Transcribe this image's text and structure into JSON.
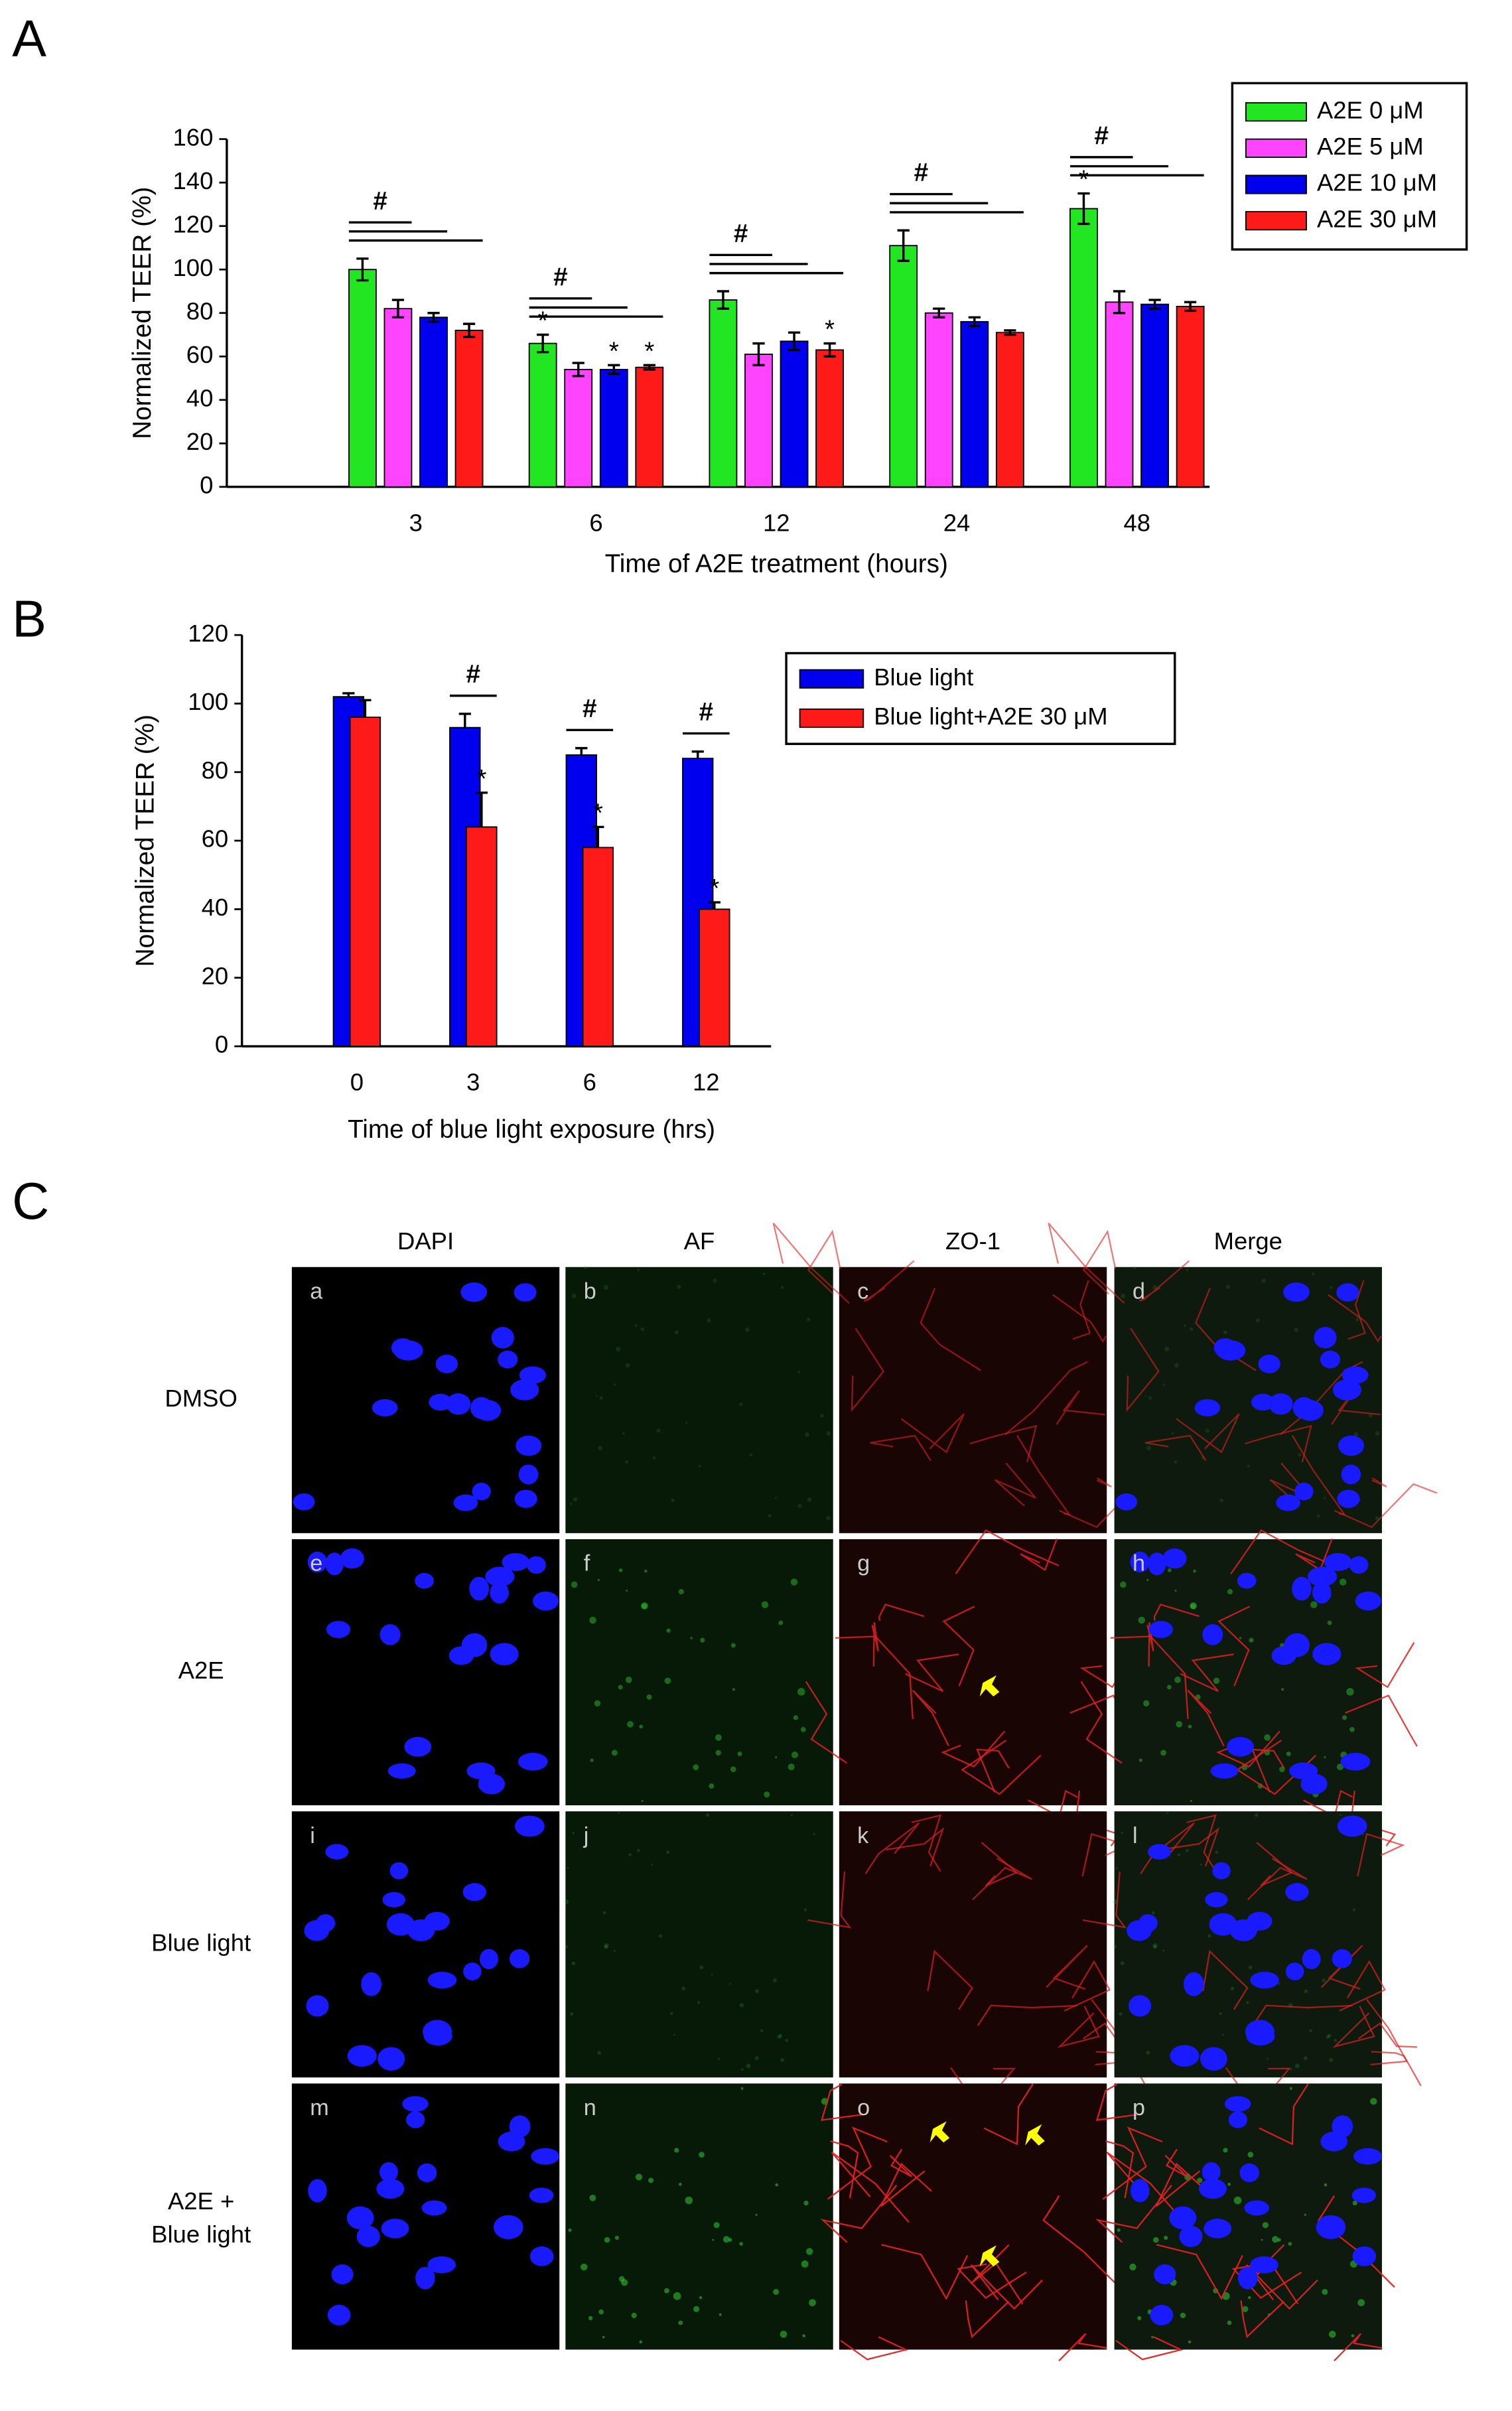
{
  "chart_data": [
    {
      "type": "bar",
      "panel_label": "A",
      "x_label": "Time of A2E treatment (hours)",
      "y_label": "Normalized TEER (%)",
      "categories": [
        "3",
        "6",
        "12",
        "24",
        "48"
      ],
      "series": [
        {
          "name": "A2E 0 μM",
          "color": "#22e622",
          "values": [
            100,
            66,
            86,
            111,
            128
          ],
          "errors": [
            5,
            4,
            4,
            7,
            7
          ],
          "annotations": [
            null,
            "*",
            null,
            null,
            "*"
          ]
        },
        {
          "name": "A2E 5 μM",
          "color": "#ff44ff",
          "values": [
            82,
            54,
            61,
            80,
            85
          ],
          "errors": [
            4,
            3,
            5,
            2,
            5
          ],
          "annotations": [
            null,
            null,
            null,
            null,
            null
          ]
        },
        {
          "name": "A2E 10 μM",
          "color": "#0000ee",
          "values": [
            78,
            54,
            67,
            76,
            84
          ],
          "errors": [
            2,
            2,
            4,
            2,
            2
          ],
          "annotations": [
            null,
            "*",
            null,
            null,
            null
          ]
        },
        {
          "name": "A2E 30 μM",
          "color": "#ff1a1a",
          "values": [
            72,
            55,
            63,
            71,
            83
          ],
          "errors": [
            3,
            1,
            3,
            1,
            2
          ],
          "annotations": [
            null,
            "*",
            "*",
            null,
            null
          ]
        }
      ],
      "group_annotations": [
        "#",
        "#",
        "#",
        "#",
        "#"
      ],
      "error_style": "both",
      "ylim": [
        0,
        160
      ],
      "yticks": [
        0,
        20,
        40,
        60,
        80,
        100,
        120,
        140,
        160
      ],
      "legend": "upper right outside"
    },
    {
      "type": "bar",
      "panel_label": "B",
      "x_label": "Time of blue light exposure (hrs)",
      "y_label": "Normalized TEER (%)",
      "categories": [
        "0",
        "3",
        "6",
        "12"
      ],
      "series": [
        {
          "name": "Blue light",
          "color": "#0000ee",
          "values": [
            102,
            93,
            85,
            84
          ],
          "errors": [
            1,
            4,
            2,
            2
          ],
          "annotations": [
            null,
            null,
            null,
            null
          ]
        },
        {
          "name": "Blue light+A2E 30 μM",
          "color": "#ff1a1a",
          "values": [
            96,
            64,
            58,
            40
          ],
          "errors": [
            5,
            10,
            6,
            2
          ],
          "annotations": [
            null,
            "*",
            "*",
            "*"
          ]
        }
      ],
      "group_annotations": [
        null,
        "#",
        "#",
        "#"
      ],
      "error_style": "upper",
      "ylim": [
        0,
        120
      ],
      "yticks": [
        0,
        20,
        40,
        60,
        80,
        100,
        120
      ],
      "legend": "right"
    }
  ],
  "panel_c": {
    "panel_label": "C",
    "columns": [
      "DAPI",
      "AF",
      "ZO-1",
      "Merge"
    ],
    "row_labels": [
      [
        "DMSO"
      ],
      [
        "A2E"
      ],
      [
        "Blue light"
      ],
      [
        "A2E +",
        "Blue light"
      ]
    ],
    "tiles": [
      "a",
      "b",
      "c",
      "d",
      "e",
      "f",
      "g",
      "h",
      "i",
      "j",
      "k",
      "l",
      "m",
      "n",
      "o",
      "p"
    ]
  }
}
